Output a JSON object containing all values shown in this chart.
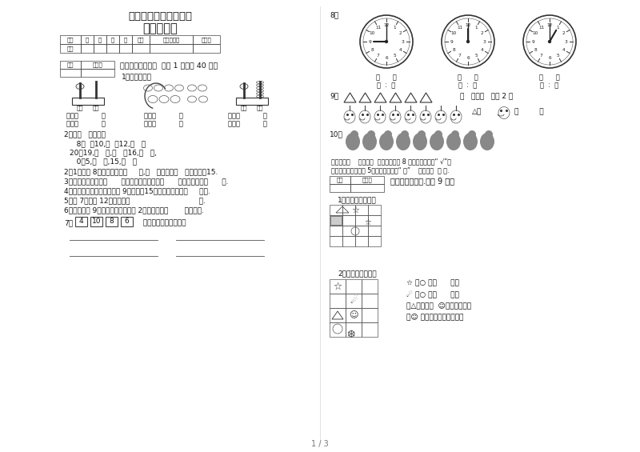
{
  "title": "一年级数学期末测试卷",
  "subtitle": "一年级数学",
  "bg_color": "#ffffff",
  "text_color": "#111111",
  "page_num": "1 / 3",
  "table_headers": [
    "题号",
    "一",
    "二",
    "三",
    "四",
    "总分",
    "累分人签阅",
    "复核人"
  ],
  "table_row": [
    "得分",
    "",
    "",
    "",
    "",
    "",
    "",
    ""
  ],
  "section1_header": "一、相信我会填（  每空 1 分，共 40 分）",
  "section1_q1": "1、写数、读数",
  "section1_q2_label": "2、在（   ）里填数",
  "fill_lines": [
    "   8（  ）10,（  ）12,（   ）",
    "20，19,（   ）,（   ）16,（   ）,",
    "   0，5,（   ）,15,（   ）"
  ],
  "section1_q2b": "2、1个十和 8个一合起来是（     ）,（   ）个一和（   ）个十组成15.",
  "section1_q3": "3、最大的一位数是（      ），最小的两位数是（      ），它们相差（      ）.",
  "section1_q4": "4、一年级数学期末测试卷第 9页看到了15页，今天他看了（     ）页.",
  "section1_q5": "5、毗 7大又毗 12小的数有（                              ）.",
  "section1_q6": "6、小红晩上 9时睡觉，妈妈比她晚 2时睡，妈妈（       ）时睡觉.",
  "section1_q7_boxes": [
    "4",
    "10",
    "8",
    "6"
  ],
  "section1_q7_suffix": "  一年级数学期末测试卷",
  "section8_label": "8、",
  "clock_labels": [
    "（      ）",
    "（      ）",
    "（      ）"
  ],
  "clock_sublabels": [
    "（  :  ）",
    "（  :  ）",
    "（  :  ）"
  ],
  "section9_label": "9、",
  "section9_right": "（   ）比（   ）多 2 个",
  "section9_right2": "△比     （         ）",
  "section10_label": "10、",
  "section10_text1": "从左数起，    排在第（  ），给排在第 8 位的动物头上打“ √”，",
  "section10_text2": "从右数起，给排在第 5位的动物头上面“ ＊”    排在第（  ） 位.",
  "section2_header": "二、我会按要做.（共 9 分）",
  "section2_q1": "1、数一数，填一填",
  "section2_q2": "2、画一画，填一填",
  "section2_q2_lines": [
    "☆ 在○ 的（      ）面",
    "☄ 在○ 的（      ）面",
    "在△的左边面  ☺，右边面（，",
    "在☺ 的下面画你喜欢的图形"
  ]
}
